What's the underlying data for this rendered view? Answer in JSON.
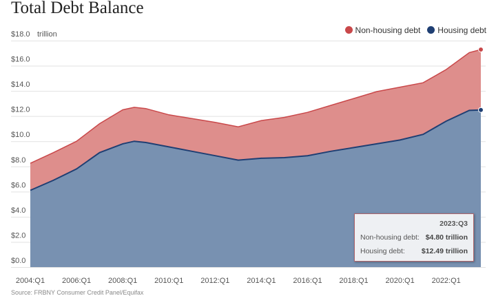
{
  "title": "Total Debt Balance",
  "source": "Source: FRBNY Consumer Credit Panel/Equifax",
  "chart_data": {
    "type": "area",
    "stacked": true,
    "title": "Total Debt Balance",
    "ylabel": "trillion",
    "ylim": [
      0,
      18
    ],
    "yticks": [
      "$0.0",
      "$2.0",
      "$4.0",
      "$6.0",
      "$8.0",
      "$10.0",
      "$12.0",
      "$14.0",
      "$16.0",
      "$18.0"
    ],
    "xticks": [
      "2004:Q1",
      "2006:Q1",
      "2008:Q1",
      "2010:Q1",
      "2012:Q1",
      "2014:Q1",
      "2016:Q1",
      "2018:Q1",
      "2020:Q1",
      "2022:Q1"
    ],
    "grid": true,
    "legend_position": "top-right",
    "x": [
      "2004:Q1",
      "2005:Q1",
      "2006:Q1",
      "2007:Q1",
      "2008:Q1",
      "2008:Q3",
      "2009:Q1",
      "2010:Q1",
      "2011:Q1",
      "2012:Q1",
      "2013:Q1",
      "2014:Q1",
      "2015:Q1",
      "2016:Q1",
      "2017:Q1",
      "2018:Q1",
      "2019:Q1",
      "2020:Q1",
      "2021:Q1",
      "2022:Q1",
      "2023:Q1",
      "2023:Q3"
    ],
    "series": [
      {
        "name": "Housing debt",
        "color": "#1f3f73",
        "fill": "#7891b1",
        "values": [
          6.1,
          6.9,
          7.8,
          9.1,
          9.8,
          10.0,
          9.9,
          9.55,
          9.2,
          8.85,
          8.5,
          8.65,
          8.7,
          8.85,
          9.2,
          9.5,
          9.8,
          10.1,
          10.55,
          11.6,
          12.45,
          12.49
        ]
      },
      {
        "name": "Non-housing debt",
        "color": "#c9484a",
        "fill": "#de8e8c",
        "values": [
          2.15,
          2.2,
          2.2,
          2.3,
          2.7,
          2.7,
          2.7,
          2.55,
          2.6,
          2.65,
          2.65,
          3.0,
          3.2,
          3.45,
          3.65,
          3.9,
          4.15,
          4.2,
          4.1,
          4.1,
          4.6,
          4.8
        ]
      }
    ],
    "tooltip": {
      "period": "2023:Q3",
      "rows": [
        {
          "label": "Non-housing debt:",
          "value": "$4.80 trillion"
        },
        {
          "label": "Housing debt:",
          "value": "$12.49 trillion"
        }
      ]
    }
  }
}
